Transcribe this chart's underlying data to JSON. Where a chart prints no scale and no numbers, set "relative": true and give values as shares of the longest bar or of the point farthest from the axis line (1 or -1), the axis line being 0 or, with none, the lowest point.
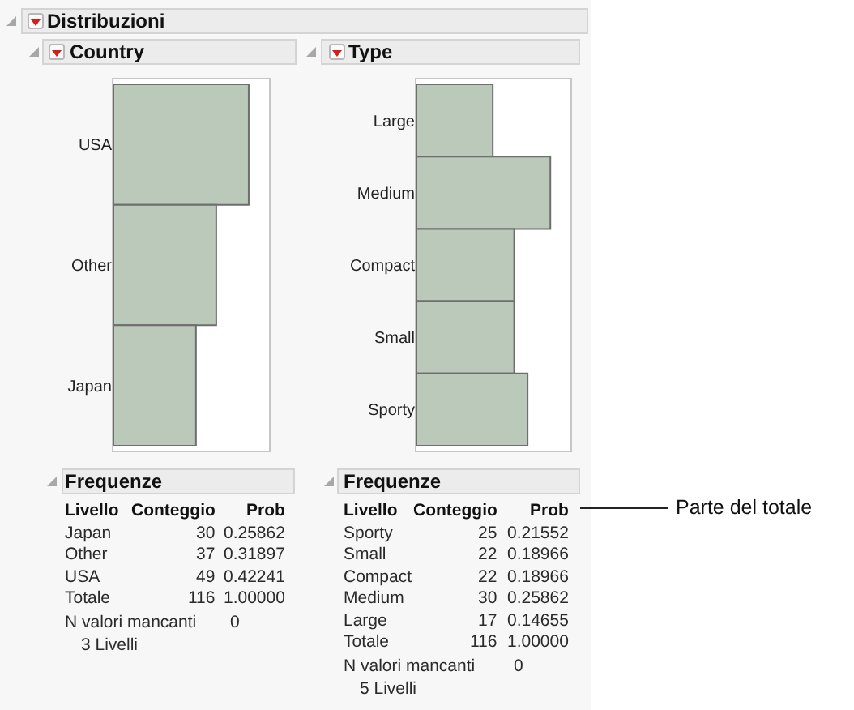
{
  "chart_data": [
    {
      "type": "other",
      "title": "Distribuzioni"
    },
    {
      "type": "bar",
      "title": "Country",
      "orientation": "horizontal",
      "relative": true,
      "categories": [
        "USA",
        "Other",
        "Japan"
      ],
      "values": [
        1,
        0.76,
        0.61
      ],
      "color": "#bac9ba",
      "tick_labels": "y"
    },
    {
      "type": "bar",
      "title": "Type",
      "orientation": "horizontal",
      "relative": true,
      "categories": [
        "Large",
        "Medium",
        "Compact",
        "Small",
        "Sporty"
      ],
      "values": [
        0.57,
        1,
        0.73,
        0.73,
        0.83
      ],
      "color": "#bac9ba",
      "tick_labels": "y"
    },
    {
      "type": "other",
      "title": "Frequenze",
      "xlabel": "Livello",
      "categories": [
        "Japan",
        "Other",
        "USA",
        "Totale"
      ],
      "series": [
        {
          "name": "Conteggio",
          "values": [
            30,
            37,
            49,
            116
          ],
          "value_labels": [
            "30",
            "37",
            "49",
            "116"
          ]
        },
        {
          "name": "Prob",
          "values": [
            0.25862,
            0.31897,
            0.42241,
            1
          ],
          "value_labels": [
            "0.25862",
            "0.31897",
            "0.42241",
            "1.00000"
          ]
        }
      ],
      "annotations": [
        "N valori mancanti",
        "0",
        "3 Livelli"
      ]
    },
    {
      "type": "other",
      "title": "Frequenze",
      "xlabel": "Livello",
      "categories": [
        "Sporty",
        "Small",
        "Compact",
        "Medium",
        "Large",
        "Totale"
      ],
      "series": [
        {
          "name": "Conteggio",
          "values": [
            25,
            22,
            22,
            30,
            17,
            116
          ],
          "value_labels": [
            "25",
            "22",
            "22",
            "30",
            "17",
            "116"
          ]
        },
        {
          "name": "Prob",
          "values": [
            0.21552,
            0.18966,
            0.18966,
            0.25862,
            0.14655,
            1
          ],
          "value_labels": [
            "0.21552",
            "0.18966",
            "0.18966",
            "0.25862",
            "0.14655",
            "1.00000"
          ]
        }
      ],
      "annotations": [
        "N valori mancanti",
        "0",
        "5 Livelli",
        "Parte del totale"
      ]
    }
  ]
}
